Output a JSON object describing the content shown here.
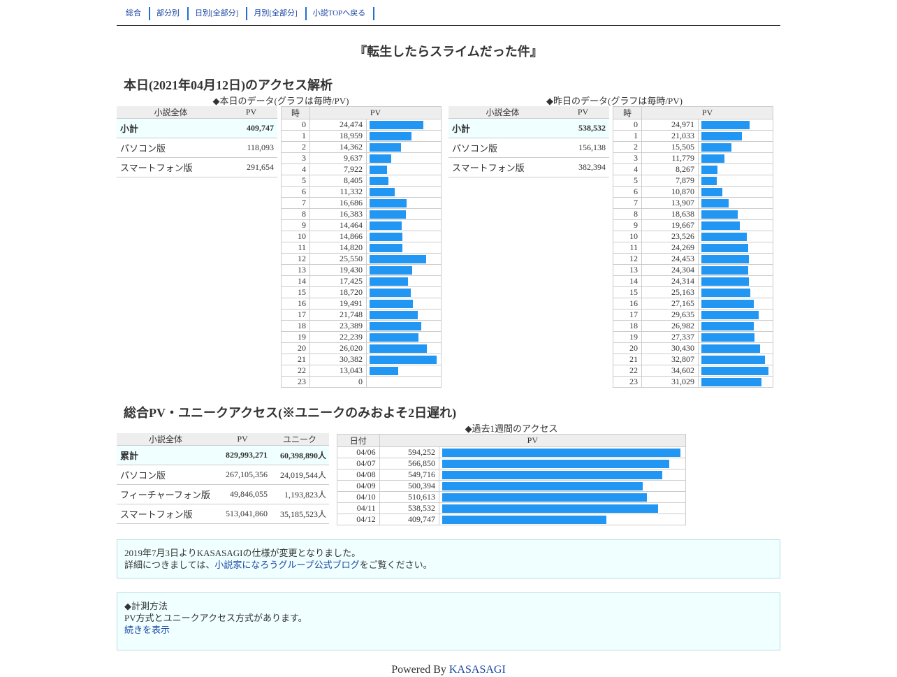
{
  "nav": [
    "総合",
    "部分別",
    "日別[全部分]",
    "月別[全部分]",
    "小説TOPへ戻る"
  ],
  "title": "『転生したらスライムだった件』",
  "today": {
    "heading": "本日(2021年04月12日)のアクセス解析",
    "today_caption": "◆本日のデータ(グラフは毎時/PV)",
    "yesterday_caption": "◆昨日のデータ(グラフは毎時/PV)",
    "summary_headers": [
      "小説全体",
      "PV"
    ],
    "hour_headers": [
      "時",
      "PV"
    ],
    "today_summary": [
      {
        "label": "小計",
        "value": "409,747"
      },
      {
        "label": "パソコン版",
        "value": "118,093"
      },
      {
        "label": "スマートフォン版",
        "value": "291,654"
      }
    ],
    "yesterday_summary": [
      {
        "label": "小計",
        "value": "538,532"
      },
      {
        "label": "パソコン版",
        "value": "156,138"
      },
      {
        "label": "スマートフォン版",
        "value": "382,394"
      }
    ],
    "today_hours": [
      24474,
      18959,
      14362,
      9637,
      7922,
      8405,
      11332,
      16686,
      16383,
      14464,
      14866,
      14820,
      25550,
      19430,
      17425,
      18720,
      19491,
      21748,
      23389,
      22239,
      26020,
      30382,
      13043,
      0
    ],
    "yesterday_hours": [
      24971,
      21033,
      15505,
      11779,
      8267,
      7879,
      10870,
      13907,
      18638,
      19667,
      23526,
      24269,
      24453,
      24304,
      24314,
      25163,
      27165,
      29635,
      26982,
      27337,
      30430,
      32807,
      34602,
      31029
    ]
  },
  "total": {
    "heading": "総合PV・ユニークアクセス(※ユニークのみおよそ2日遅れ)",
    "headers": [
      "小説全体",
      "PV",
      "ユニーク"
    ],
    "rows": [
      {
        "label": "累計",
        "pv": "829,993,271",
        "unique": "60,398,890人"
      },
      {
        "label": "パソコン版",
        "pv": "267,105,356",
        "unique": "24,019,544人"
      },
      {
        "label": "フィーチャーフォン版",
        "pv": "49,846,055",
        "unique": "1,193,823人"
      },
      {
        "label": "スマートフォン版",
        "pv": "513,041,860",
        "unique": "35,185,523人"
      }
    ],
    "week_caption": "◆過去1週間のアクセス",
    "week_headers": [
      "日付",
      "PV"
    ],
    "week": [
      {
        "date": "04/06",
        "pv": 594252
      },
      {
        "date": "04/07",
        "pv": 566850
      },
      {
        "date": "04/08",
        "pv": 549716
      },
      {
        "date": "04/09",
        "pv": 500394
      },
      {
        "date": "04/10",
        "pv": 510613
      },
      {
        "date": "04/11",
        "pv": 538532
      },
      {
        "date": "04/12",
        "pv": 409747
      }
    ]
  },
  "notice": {
    "line1": "2019年7月3日よりKASASAGIの仕様が変更となりました。",
    "line2_pre": "詳細につきましては、",
    "line2_link": "小説家になろうグループ公式ブログ",
    "line2_post": "をご覧ください。"
  },
  "method": {
    "title": "◆計測方法",
    "text": "PV方式とユニークアクセス方式があります。",
    "link": "続きを表示"
  },
  "footer": {
    "prefix": "Powered By ",
    "link": "KASASAGI"
  },
  "colors": {
    "bar": "#2196f3",
    "note_bg": "#f0ffff",
    "link": "#1a45a3"
  }
}
